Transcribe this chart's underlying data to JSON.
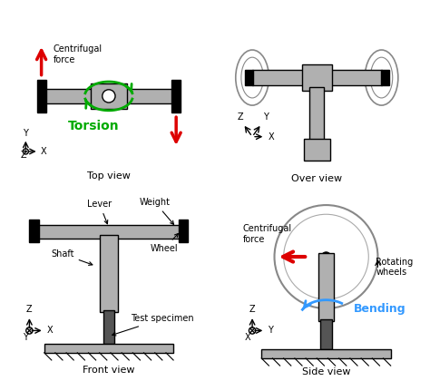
{
  "bg_color": "#ffffff",
  "title_color": "#000000",
  "torsion_color": "#00aa00",
  "bending_color": "#0055ff",
  "arrow_red": "#dd0000",
  "gray_part": "#b0b0b0",
  "dark_gray": "#555555",
  "black": "#000000",
  "top_view_label": "Top view",
  "over_view_label": "Over view",
  "front_view_label": "Front view",
  "side_view_label": "Side view",
  "torsion_label": "Torsion",
  "bending_label": "Bending",
  "centrifugal_label": "Centrifugal\nforce",
  "centrifugal_label2": "Centrifugal\nforce",
  "lever_label": "Lever",
  "weight_label": "Weight",
  "shaft_label": "Shaft",
  "wheel_label": "Wheel",
  "test_specimen_label": "Test specimen",
  "rotating_wheels_label": "Rotating\nwheels"
}
